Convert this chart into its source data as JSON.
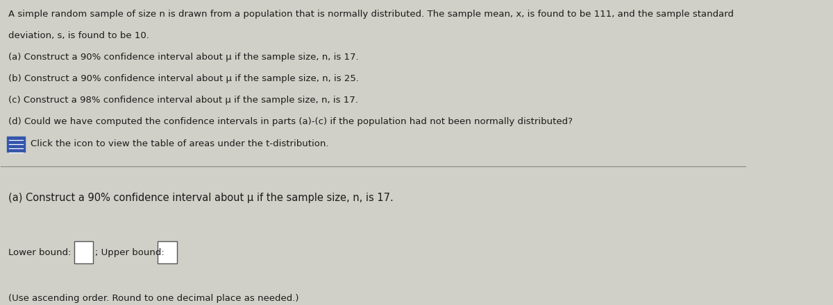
{
  "bg_color": "#d0d0c8",
  "text_color": "#1a1a1a",
  "line1": "A simple random sample of size n is drawn from a population that is normally distributed. The sample mean, x, is found to be 111, and the sample standard",
  "line2": "deviation, s, is found to be 10.",
  "line_a": "(a) Construct a 90% confidence interval about μ if the sample size, n, is 17.",
  "line_b": "(b) Construct a 90% confidence interval about μ if the sample size, n, is 25.",
  "line_c": "(c) Construct a 98% confidence interval about μ if the sample size, n, is 17.",
  "line_d": "(d) Could we have computed the confidence intervals in parts (a)-(c) if the population had not been normally distributed?",
  "click_text": "Click the icon to view the table of areas under the t-distribution.",
  "section_a": "(a) Construct a 90% confidence interval about μ if the sample size, n, is 17.",
  "lower_label": "Lower bound:",
  "upper_label": "; Upper bound:",
  "note": "(Use ascending order. Round to one decimal place as needed.)",
  "divider_color": "#888888",
  "icon_color": "#3355aa",
  "box_color": "#ffffff",
  "box_edge_color": "#555555",
  "title_font_size": 9.5,
  "body_font_size": 9.5,
  "section_font_size": 10.5
}
